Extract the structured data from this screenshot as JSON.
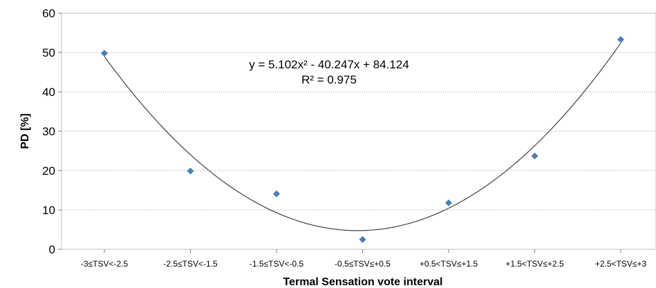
{
  "chart_data": {
    "type": "scatter",
    "title": "",
    "xlabel": "Termal Sensation vote interval",
    "ylabel": "PD [%]",
    "ylim": [
      0,
      60
    ],
    "yticks": [
      0,
      10,
      20,
      30,
      40,
      50,
      60
    ],
    "grid": "horizontal dotted",
    "categories": [
      "-3≤TSV<-2.5",
      "-2.5≤TSV<-1.5",
      "-1.5≤TSV<-0.5",
      "-0.5≤TSV≤+0.5",
      "+0.5<TSV≤+1.5",
      "+1.5<TSV≤+2.5",
      "+2.5<TSV≤+3"
    ],
    "x": [
      1,
      2,
      3,
      4,
      5,
      6,
      7
    ],
    "values": [
      49.8,
      19.9,
      14.1,
      2.5,
      11.8,
      23.7,
      53.3
    ],
    "marker_color": "#4a7ebb",
    "trendline": {
      "type": "polynomial",
      "a": 5.102,
      "b": -40.247,
      "c": 84.124,
      "equation": "y = 5.102x² - 40.247x + 84.124",
      "r_squared": "R² = 0.975"
    }
  }
}
